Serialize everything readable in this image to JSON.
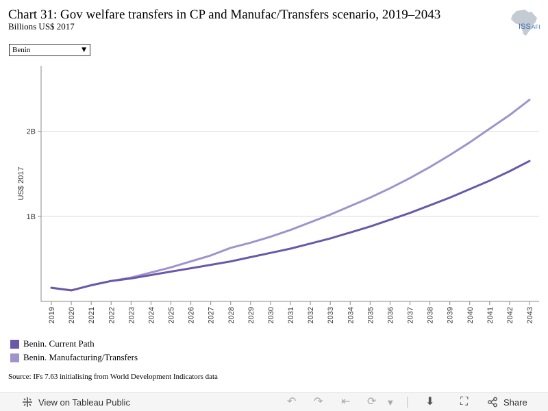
{
  "header": {
    "title": "Chart 31: Gov welfare transfers in CP and Manufac/Transfers scenario, 2019–2043",
    "subtitle": "Billions US$ 2017",
    "logo_text": "ISS",
    "logo_suffix": "AFI"
  },
  "filter": {
    "selected": "Benin"
  },
  "chart_data": {
    "type": "line",
    "title": "Chart 31: Gov welfare transfers in CP and Manufac/Transfers scenario, 2019–2043",
    "ylabel": "US$ 2017",
    "xlabel": "",
    "x": [
      2019,
      2020,
      2021,
      2022,
      2023,
      2024,
      2025,
      2026,
      2027,
      2028,
      2029,
      2030,
      2031,
      2032,
      2033,
      2034,
      2035,
      2036,
      2037,
      2038,
      2039,
      2040,
      2041,
      2042,
      2043
    ],
    "x_tick_labels": [
      "2019",
      "2020",
      "2021",
      "2022",
      "2023",
      "2024",
      "2025",
      "2026",
      "2027",
      "2028",
      "2029",
      "2030",
      "2031",
      "2032",
      "2033",
      "2034",
      "2035",
      "2036",
      "2037",
      "2038",
      "2039",
      "2040",
      "2041",
      "2042",
      "2043"
    ],
    "y_ticks": [
      1,
      2
    ],
    "y_tick_labels": [
      "1B",
      "2B"
    ],
    "ylim": [
      0.0,
      2.77
    ],
    "grid": true,
    "legend_position": "bottom-left",
    "series": [
      {
        "name": "Benin. Current Path",
        "color": "#6a58a8",
        "values": [
          0.16,
          0.13,
          0.19,
          0.24,
          0.27,
          0.31,
          0.35,
          0.39,
          0.43,
          0.47,
          0.52,
          0.57,
          0.62,
          0.68,
          0.74,
          0.81,
          0.88,
          0.96,
          1.04,
          1.13,
          1.22,
          1.32,
          1.42,
          1.53,
          1.65
        ]
      },
      {
        "name": "Benin. Manufacturing/Transfers",
        "color": "#a093cb",
        "values": [
          0.16,
          0.13,
          0.19,
          0.24,
          0.28,
          0.34,
          0.4,
          0.47,
          0.54,
          0.63,
          0.69,
          0.76,
          0.84,
          0.93,
          1.02,
          1.12,
          1.22,
          1.33,
          1.45,
          1.58,
          1.72,
          1.87,
          2.03,
          2.19,
          2.37
        ]
      }
    ]
  },
  "legend": {
    "items": [
      {
        "label": "Benin. Current Path",
        "color": "#6a58a8"
      },
      {
        "label": "Benin. Manufacturing/Transfers",
        "color": "#a093cb"
      }
    ]
  },
  "source": "Source: IFs 7.63 initialising from World Development Indicators data",
  "footer": {
    "view_label": "View on Tableau Public",
    "share_label": "Share",
    "icons": [
      "tableau-logo-icon",
      "undo-icon",
      "redo-icon",
      "revert-icon",
      "refresh-icon",
      "dropdown-icon",
      "download-icon",
      "fullscreen-icon",
      "share-icon"
    ]
  }
}
